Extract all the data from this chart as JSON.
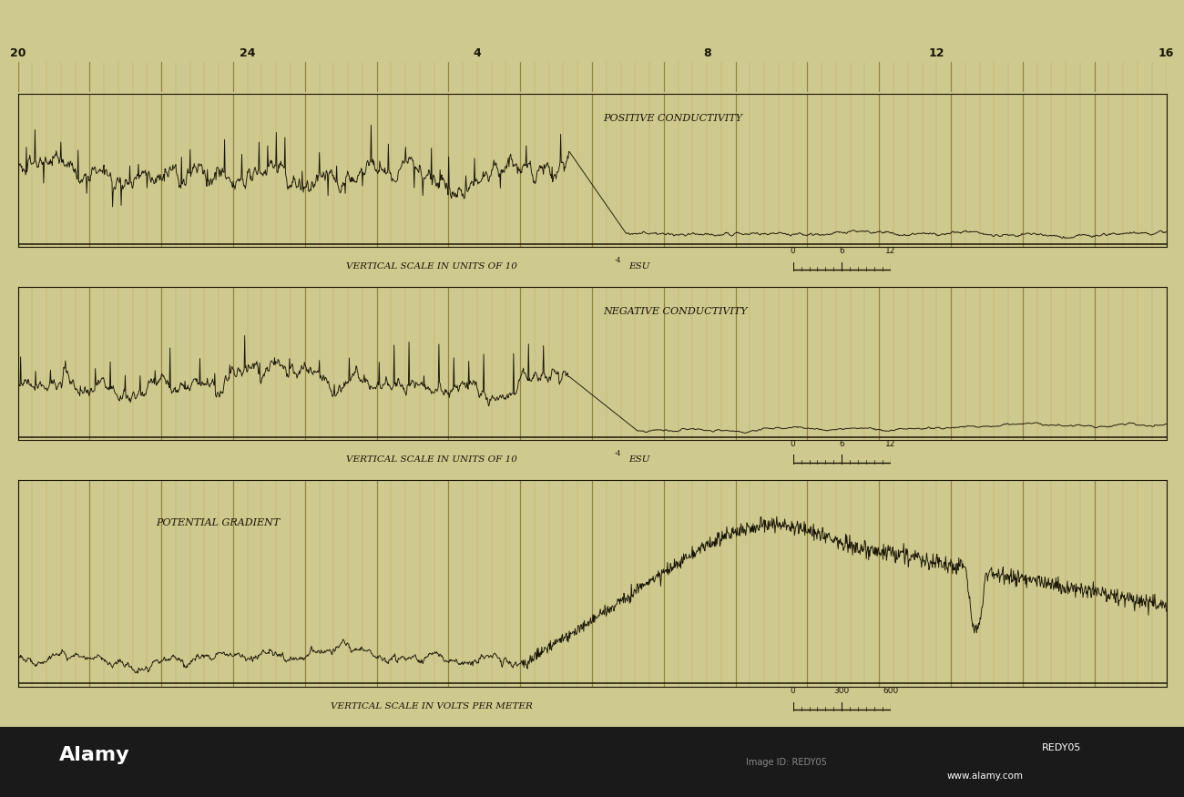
{
  "bg_color": "#cec98e",
  "panel_bg": "#cec98e",
  "line_color": "#1a1505",
  "grid_major_color": "#8a7a30",
  "grid_minor_color": "#b8aa60",
  "bottom_bar_color": "#1a1a1a",
  "panel1_label": "POSITIVE CONDUCTIVITY",
  "panel2_label": "NEGATIVE CONDUCTIVITY",
  "panel3_label": "POTENTIAL GRADIENT",
  "scale1_text": "VERTICAL SCALE IN UNITS OF 10",
  "scale1_exp": "-4",
  "scale1_unit": "ESU",
  "scale3_text": "VERTICAL SCALE IN VOLTS PER METER",
  "scale1_ticks": [
    0,
    6,
    12
  ],
  "scale3_ticks": [
    0,
    300,
    600
  ],
  "time_labels": [
    "20",
    "24",
    "4",
    "8",
    "12",
    "16"
  ],
  "figsize": [
    13.0,
    8.75
  ],
  "dpi": 100,
  "n_points": 2000,
  "n_major_divisions": 16,
  "n_minor_per_major": 5
}
